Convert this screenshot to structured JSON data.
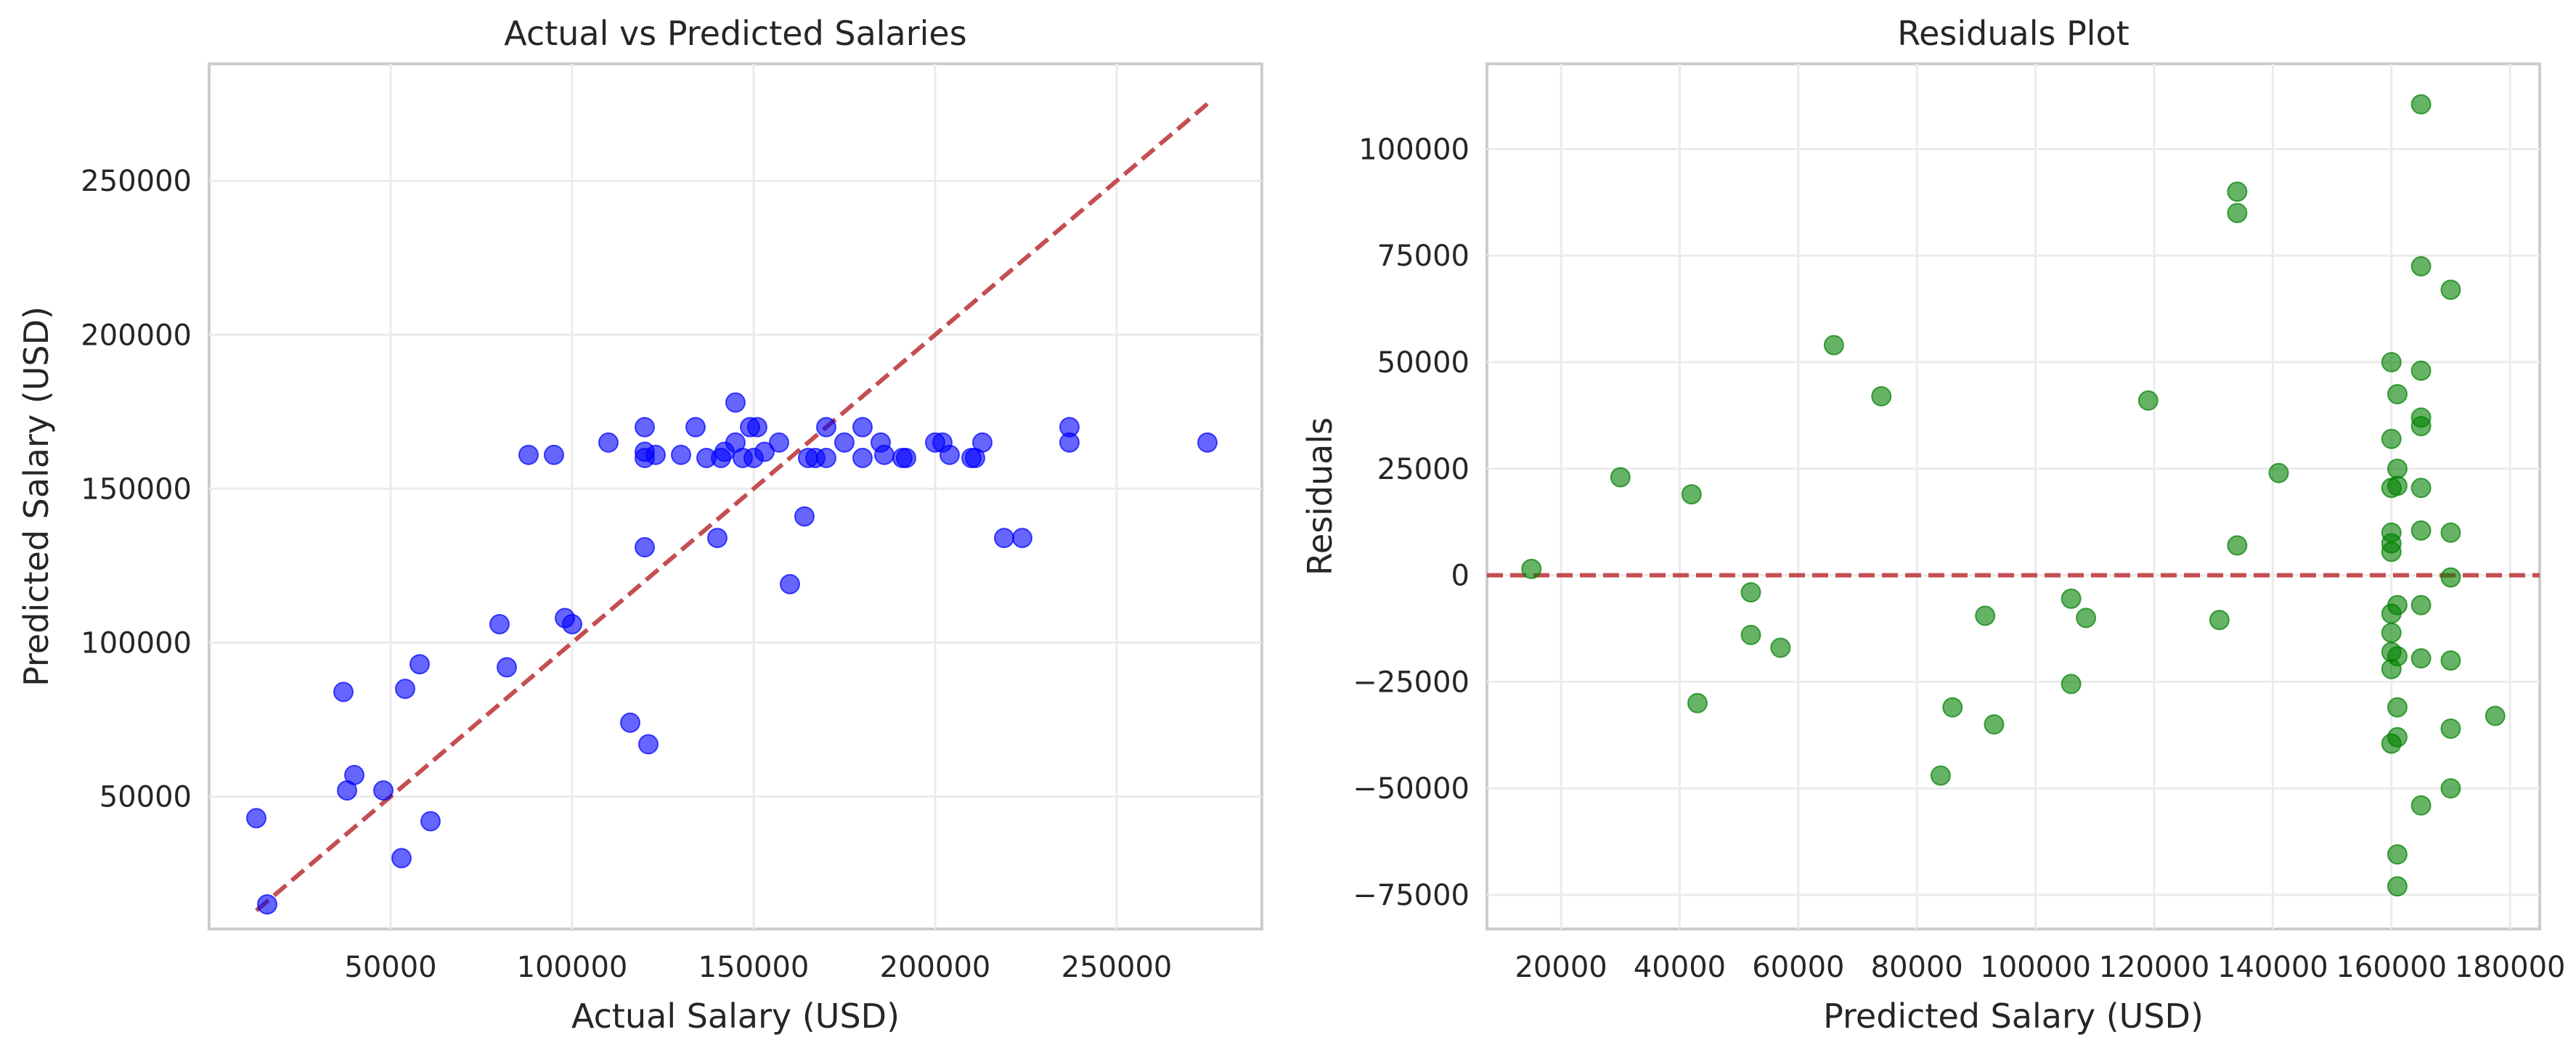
{
  "chart_data": [
    {
      "type": "scatter",
      "title": "Actual vs Predicted Salaries",
      "xlabel": "Actual Salary (USD)",
      "ylabel": "Predicted Salary (USD)",
      "xlim": [
        0,
        290000
      ],
      "ylim": [
        7000,
        288000
      ],
      "xticks": [
        50000,
        100000,
        150000,
        200000,
        250000
      ],
      "xtick_labels": [
        "50000",
        "100000",
        "150000",
        "200000",
        "250000"
      ],
      "yticks": [
        50000,
        100000,
        150000,
        200000,
        250000
      ],
      "ytick_labels": [
        "50000",
        "100000",
        "150000",
        "200000",
        "250000"
      ],
      "grid": true,
      "point_color": "#0000ff",
      "ref_line_color": "#c44e52",
      "reference_line": {
        "x": [
          13000,
          275000
        ],
        "y": [
          13000,
          275000
        ],
        "style": "dashed"
      },
      "points": [
        [
          13000,
          43000
        ],
        [
          16000,
          15000
        ],
        [
          37000,
          84000
        ],
        [
          38000,
          52000
        ],
        [
          40000,
          57000
        ],
        [
          48000,
          52000
        ],
        [
          53000,
          30000
        ],
        [
          54000,
          85000
        ],
        [
          58000,
          93000
        ],
        [
          61000,
          42000
        ],
        [
          80000,
          106000
        ],
        [
          82000,
          92000
        ],
        [
          88000,
          161000
        ],
        [
          95000,
          161000
        ],
        [
          98000,
          108000
        ],
        [
          100000,
          106000
        ],
        [
          110000,
          165000
        ],
        [
          116000,
          74000
        ],
        [
          120000,
          131000
        ],
        [
          120000,
          160000
        ],
        [
          120000,
          162000
        ],
        [
          120000,
          170000
        ],
        [
          121000,
          67000
        ],
        [
          123000,
          161000
        ],
        [
          130000,
          161000
        ],
        [
          134000,
          170000
        ],
        [
          137000,
          160000
        ],
        [
          140000,
          134000
        ],
        [
          141000,
          160000
        ],
        [
          142000,
          162000
        ],
        [
          145000,
          165000
        ],
        [
          145000,
          178000
        ],
        [
          147000,
          160000
        ],
        [
          149000,
          170000
        ],
        [
          150000,
          160000
        ],
        [
          151000,
          170000
        ],
        [
          153000,
          162000
        ],
        [
          157000,
          165000
        ],
        [
          160000,
          119000
        ],
        [
          164000,
          141000
        ],
        [
          165000,
          160000
        ],
        [
          167000,
          160000
        ],
        [
          170000,
          160000
        ],
        [
          170000,
          170000
        ],
        [
          175000,
          165000
        ],
        [
          180000,
          160000
        ],
        [
          180000,
          170000
        ],
        [
          185000,
          165000
        ],
        [
          186000,
          161000
        ],
        [
          191000,
          160000
        ],
        [
          192000,
          160000
        ],
        [
          200000,
          165000
        ],
        [
          202000,
          165000
        ],
        [
          204000,
          161000
        ],
        [
          210000,
          160000
        ],
        [
          211000,
          160000
        ],
        [
          213000,
          165000
        ],
        [
          219000,
          134000
        ],
        [
          224000,
          134000
        ],
        [
          237000,
          165000
        ],
        [
          237000,
          170000
        ],
        [
          275000,
          165000
        ]
      ]
    },
    {
      "type": "scatter",
      "title": "Residuals Plot",
      "xlabel": "Predicted Salary (USD)",
      "ylabel": "Residuals",
      "xlim": [
        7500,
        185000
      ],
      "ylim": [
        -83000,
        120000
      ],
      "xticks": [
        20000,
        40000,
        60000,
        80000,
        100000,
        120000,
        140000,
        160000,
        180000
      ],
      "xtick_labels": [
        "20000",
        "40000",
        "60000",
        "80000",
        "100000",
        "120000",
        "140000",
        "160000",
        "180000"
      ],
      "yticks": [
        -75000,
        -50000,
        -25000,
        0,
        25000,
        50000,
        75000,
        100000
      ],
      "ytick_labels": [
        "−75000",
        "−50000",
        "−25000",
        "0",
        "25000",
        "50000",
        "75000",
        "100000"
      ],
      "grid": true,
      "point_color": "#008000",
      "ref_line_color": "#c44e52",
      "reference_line": {
        "y": 0,
        "style": "dashed"
      },
      "points": [
        [
          15000,
          1500
        ],
        [
          30000,
          23000
        ],
        [
          42000,
          19000
        ],
        [
          43000,
          -30000
        ],
        [
          52000,
          -4000
        ],
        [
          52000,
          -14000
        ],
        [
          57000,
          -17000
        ],
        [
          66000,
          54000
        ],
        [
          74000,
          42000
        ],
        [
          84000,
          -47000
        ],
        [
          86000,
          -31000
        ],
        [
          91500,
          -9500
        ],
        [
          93000,
          -35000
        ],
        [
          106000,
          -5500
        ],
        [
          106000,
          -25500
        ],
        [
          108500,
          -10000
        ],
        [
          119000,
          41000
        ],
        [
          131000,
          -10500
        ],
        [
          134000,
          90000
        ],
        [
          134000,
          85000
        ],
        [
          134000,
          7000
        ],
        [
          141000,
          24000
        ],
        [
          160000,
          50000
        ],
        [
          160000,
          32000
        ],
        [
          160000,
          20500
        ],
        [
          160000,
          10000
        ],
        [
          160000,
          7500
        ],
        [
          160000,
          5500
        ],
        [
          160000,
          -9000
        ],
        [
          160000,
          -13500
        ],
        [
          160000,
          -18000
        ],
        [
          160000,
          -22000
        ],
        [
          160000,
          -39500
        ],
        [
          161000,
          42500
        ],
        [
          161000,
          25000
        ],
        [
          161000,
          21000
        ],
        [
          161000,
          -7000
        ],
        [
          161000,
          -19000
        ],
        [
          161000,
          -31000
        ],
        [
          161000,
          -38000
        ],
        [
          161000,
          -65500
        ],
        [
          161000,
          -73000
        ],
        [
          165000,
          110500
        ],
        [
          165000,
          72500
        ],
        [
          165000,
          48000
        ],
        [
          165000,
          37000
        ],
        [
          165000,
          35000
        ],
        [
          165000,
          20500
        ],
        [
          165000,
          10500
        ],
        [
          165000,
          -7000
        ],
        [
          165000,
          -19500
        ],
        [
          165000,
          -54000
        ],
        [
          170000,
          67000
        ],
        [
          170000,
          10000
        ],
        [
          170000,
          -500
        ],
        [
          170000,
          -20000
        ],
        [
          170000,
          -36000
        ],
        [
          170000,
          -50000
        ],
        [
          177500,
          -33000
        ]
      ]
    }
  ]
}
